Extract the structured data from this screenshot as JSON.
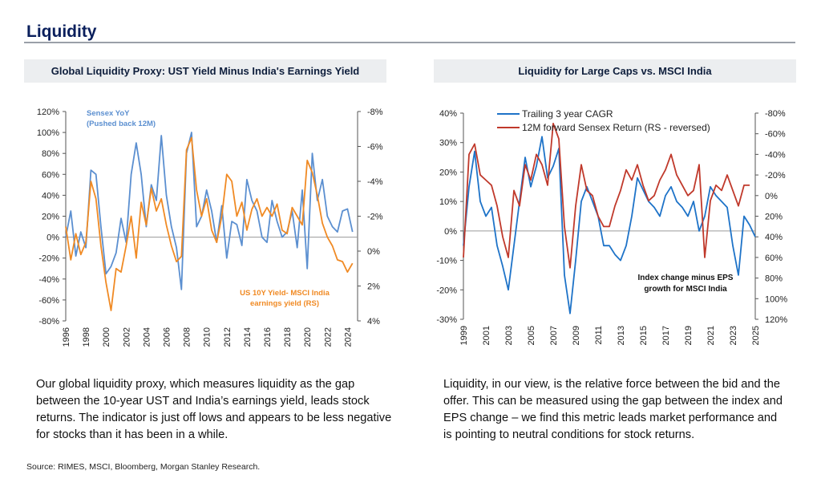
{
  "page": {
    "title": "Liquidity",
    "source": "Source: RIMES, MSCI, Bloomberg, Morgan Stanley Research."
  },
  "left_panel": {
    "heading": "Global Liquidity Proxy: UST Yield Minus India's Earnings Yield",
    "body": "Our global liquidity proxy, which measures liquidity as the gap between the 10-year UST and India’s earnings yield, leads stock returns. The indicator is just off lows and appears to be less negative for stocks than it has been in a while."
  },
  "right_panel": {
    "heading": "Liquidity for Large Caps vs. MSCI India",
    "body": "Liquidity, in our view, is the relative force between the bid and the offer. This can be measured using the gap between the index and EPS change – we find this metric leads market performance and is pointing to neutral conditions for stock returns."
  },
  "chart_data": [
    {
      "type": "line",
      "title": "Global Liquidity Proxy: UST Yield Minus India's Earnings Yield",
      "y_left": {
        "min": -80,
        "max": 120,
        "ticks": [
          "120%",
          "100%",
          "80%",
          "60%",
          "40%",
          "20%",
          "0%",
          "-20%",
          "-40%",
          "-60%",
          "-80%"
        ]
      },
      "y_right": {
        "reversed": true,
        "min": -8,
        "max": 4,
        "ticks": [
          "-8%",
          "-6%",
          "-4%",
          "-2%",
          "0%",
          "2%",
          "4%"
        ]
      },
      "x_ticks": [
        "1996",
        "1998",
        "2000",
        "2002",
        "2004",
        "2006",
        "2008",
        "2010",
        "2012",
        "2014",
        "2016",
        "2018",
        "2020",
        "2022",
        "2024"
      ],
      "series": [
        {
          "name": "Sensex YoY (Pushed back 12M)",
          "axis": "left",
          "color": "#5b8fd0",
          "label_lines": [
            "Sensex YoY",
            "(Pushed back 12M)"
          ],
          "x": [
            1996.0,
            1996.5,
            1997.0,
            1997.5,
            1998.0,
            1998.5,
            1999.0,
            1999.5,
            2000.0,
            2000.5,
            2001.0,
            2001.5,
            2002.0,
            2002.5,
            2003.0,
            2003.5,
            2004.0,
            2004.5,
            2005.0,
            2005.5,
            2006.0,
            2006.5,
            2007.0,
            2007.5,
            2008.0,
            2008.5,
            2009.0,
            2009.5,
            2010.0,
            2010.5,
            2011.0,
            2011.5,
            2012.0,
            2012.5,
            2013.0,
            2013.5,
            2014.0,
            2014.5,
            2015.0,
            2015.5,
            2016.0,
            2016.5,
            2017.0,
            2017.5,
            2018.0,
            2018.5,
            2019.0,
            2019.5,
            2020.0,
            2020.5,
            2021.0,
            2021.5,
            2022.0,
            2022.5,
            2023.0,
            2023.5,
            2024.0,
            2024.5
          ],
          "y": [
            0,
            25,
            -18,
            5,
            -10,
            64,
            60,
            10,
            -35,
            -28,
            -15,
            18,
            -5,
            60,
            90,
            60,
            10,
            50,
            35,
            97,
            40,
            10,
            -10,
            -50,
            80,
            100,
            10,
            20,
            45,
            25,
            -5,
            30,
            -20,
            15,
            12,
            -8,
            55,
            35,
            25,
            0,
            -5,
            35,
            15,
            0,
            5,
            25,
            -10,
            45,
            -30,
            80,
            35,
            55,
            20,
            10,
            5,
            25,
            27,
            5
          ]
        },
        {
          "name": "US 10Y Yield- MSCI India earnings yield (RS)",
          "axis": "right",
          "color": "#f08a24",
          "label_lines": [
            "US 10Y Yield- MSCI India",
            "earnings yield (RS)"
          ],
          "x": [
            1996.0,
            1996.5,
            1997.0,
            1997.5,
            1998.0,
            1998.5,
            1999.0,
            1999.5,
            2000.0,
            2000.5,
            2001.0,
            2001.5,
            2002.0,
            2002.5,
            2003.0,
            2003.5,
            2004.0,
            2004.5,
            2005.0,
            2005.5,
            2006.0,
            2006.5,
            2007.0,
            2007.5,
            2008.0,
            2008.5,
            2009.0,
            2009.5,
            2010.0,
            2010.5,
            2011.0,
            2011.5,
            2012.0,
            2012.5,
            2013.0,
            2013.5,
            2014.0,
            2014.5,
            2015.0,
            2015.5,
            2016.0,
            2016.5,
            2017.0,
            2017.5,
            2018.0,
            2018.5,
            2019.0,
            2019.5,
            2020.0,
            2020.5,
            2021.0,
            2021.5,
            2022.0,
            2022.5,
            2023.0,
            2023.5,
            2024.0,
            2024.5
          ],
          "y": [
            -1.4,
            0.5,
            -1.0,
            0.2,
            -0.5,
            -4.0,
            -3.0,
            -0.3,
            1.8,
            3.4,
            1.0,
            1.2,
            -0.3,
            -2.0,
            0.4,
            -2.8,
            -1.5,
            -3.6,
            -2.3,
            -3.0,
            -1.5,
            -0.3,
            0.6,
            0.3,
            -5.8,
            -6.5,
            -3.5,
            -2.0,
            -3.0,
            -1.2,
            -0.5,
            -2.0,
            -4.4,
            -4.0,
            -2.0,
            -2.8,
            -1.2,
            -2.4,
            -3.0,
            -2.0,
            -2.5,
            -2.0,
            -2.7,
            -1.2,
            -1.0,
            -2.5,
            -2.0,
            -1.5,
            -5.2,
            -4.5,
            -3.2,
            -1.6,
            -0.8,
            -0.3,
            0.5,
            0.6,
            1.2,
            0.7
          ]
        }
      ]
    },
    {
      "type": "line",
      "title": "Liquidity for Large Caps vs. MSCI India",
      "annotation_lines": [
        "Index change minus EPS",
        "growth for MSCI India"
      ],
      "y_left": {
        "min": -30,
        "max": 40,
        "ticks": [
          "40%",
          "30%",
          "20%",
          "10%",
          "0%",
          "-10%",
          "-20%",
          "-30%"
        ]
      },
      "y_right": {
        "reversed": true,
        "min": -80,
        "max": 120,
        "ticks": [
          "-80%",
          "-60%",
          "-40%",
          "-20%",
          "0%",
          "20%",
          "40%",
          "60%",
          "80%",
          "100%",
          "120%"
        ]
      },
      "x_ticks": [
        "1999",
        "2001",
        "2003",
        "2005",
        "2007",
        "2009",
        "2011",
        "2013",
        "2015",
        "2017",
        "2019",
        "2021",
        "2023",
        "2025"
      ],
      "series": [
        {
          "name": "Trailing 3 year CAGR",
          "axis": "left",
          "color": "#1e73c8",
          "x": [
            1999.0,
            1999.5,
            2000.0,
            2000.5,
            2001.0,
            2001.5,
            2002.0,
            2002.5,
            2003.0,
            2003.5,
            2004.0,
            2004.5,
            2005.0,
            2005.5,
            2006.0,
            2006.5,
            2007.0,
            2007.5,
            2008.0,
            2008.5,
            2009.0,
            2009.5,
            2010.0,
            2010.5,
            2011.0,
            2011.5,
            2012.0,
            2012.5,
            2013.0,
            2013.5,
            2014.0,
            2014.5,
            2015.0,
            2015.5,
            2016.0,
            2016.5,
            2017.0,
            2017.5,
            2018.0,
            2018.5,
            2019.0,
            2019.5,
            2020.0,
            2020.5,
            2021.0,
            2021.5,
            2022.0,
            2022.5,
            2023.0,
            2023.5,
            2024.0,
            2024.5,
            2025.0
          ],
          "y": [
            -5,
            15,
            27,
            10,
            5,
            8,
            -5,
            -12,
            -20,
            -5,
            10,
            25,
            15,
            22,
            32,
            18,
            22,
            28,
            -15,
            -28,
            -10,
            10,
            15,
            10,
            5,
            -5,
            -5,
            -8,
            -10,
            -5,
            5,
            18,
            14,
            10,
            8,
            5,
            12,
            15,
            10,
            8,
            5,
            10,
            0,
            5,
            15,
            12,
            10,
            8,
            -5,
            -15,
            5,
            2,
            -2
          ]
        },
        {
          "name": "12M forward Sensex Return (RS - reversed)",
          "axis": "right",
          "color": "#c0392b",
          "x": [
            1999.0,
            1999.5,
            2000.0,
            2000.5,
            2001.0,
            2001.5,
            2002.0,
            2002.5,
            2003.0,
            2003.5,
            2004.0,
            2004.5,
            2005.0,
            2005.5,
            2006.0,
            2006.5,
            2007.0,
            2007.5,
            2008.0,
            2008.5,
            2009.0,
            2009.5,
            2010.0,
            2010.5,
            2011.0,
            2011.5,
            2012.0,
            2012.5,
            2013.0,
            2013.5,
            2014.0,
            2014.5,
            2015.0,
            2015.5,
            2016.0,
            2016.5,
            2017.0,
            2017.5,
            2018.0,
            2018.5,
            2019.0,
            2019.5,
            2020.0,
            2020.5,
            2021.0,
            2021.5,
            2022.0,
            2022.5,
            2023.0,
            2023.5,
            2024.0,
            2024.5
          ],
          "y": [
            60,
            -40,
            -50,
            -20,
            -15,
            -10,
            10,
            40,
            60,
            -5,
            10,
            -30,
            -15,
            -40,
            -30,
            -10,
            -70,
            -55,
            30,
            70,
            10,
            -30,
            -5,
            0,
            20,
            30,
            30,
            10,
            -5,
            -25,
            -15,
            -30,
            -10,
            5,
            0,
            -15,
            -25,
            -40,
            -20,
            -10,
            0,
            -5,
            -30,
            60,
            5,
            -10,
            -5,
            -20,
            -5,
            10,
            -10,
            -10
          ]
        }
      ]
    }
  ]
}
